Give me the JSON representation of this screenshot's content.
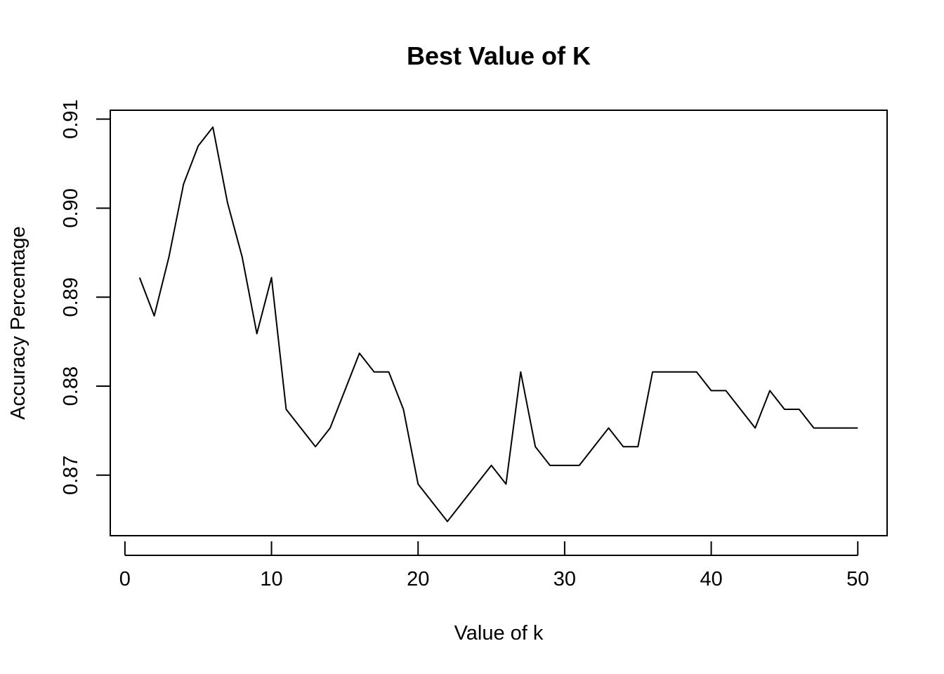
{
  "chart_data": {
    "type": "line",
    "title": "Best Value of K",
    "xlabel": "Value of k",
    "ylabel": "Accuracy Percentage",
    "xlim": [
      -1,
      52
    ],
    "ylim": [
      0.8632,
      0.911
    ],
    "xticks": [
      0,
      10,
      20,
      30,
      40,
      50
    ],
    "xtick_labels": [
      "0",
      "10",
      "20",
      "30",
      "40",
      "50"
    ],
    "yticks": [
      0.87,
      0.88,
      0.89,
      0.9,
      0.91
    ],
    "ytick_labels": [
      "0.87",
      "0.88",
      "0.89",
      "0.90",
      "0.91"
    ],
    "grid": false,
    "line_color": "#000000",
    "x": [
      1,
      2,
      3,
      4,
      5,
      6,
      7,
      8,
      9,
      10,
      11,
      12,
      13,
      14,
      15,
      16,
      17,
      18,
      19,
      20,
      21,
      22,
      23,
      24,
      25,
      26,
      27,
      28,
      29,
      30,
      31,
      32,
      33,
      34,
      35,
      36,
      37,
      38,
      39,
      40,
      41,
      42,
      43,
      44,
      45,
      46,
      47,
      48,
      49,
      50
    ],
    "y": [
      0.8922,
      0.8879,
      0.8945,
      0.9027,
      0.907,
      0.9091,
      0.9006,
      0.8945,
      0.8859,
      0.8922,
      0.8774,
      0.8753,
      0.8732,
      0.8753,
      0.8795,
      0.8837,
      0.8816,
      0.8816,
      0.8774,
      0.869,
      0.8669,
      0.8648,
      0.8669,
      0.869,
      0.8711,
      0.869,
      0.8816,
      0.8732,
      0.8711,
      0.8711,
      0.8711,
      0.8732,
      0.8753,
      0.8732,
      0.8732,
      0.8816,
      0.8816,
      0.8816,
      0.8816,
      0.8795,
      0.8795,
      0.8774,
      0.8753,
      0.8795,
      0.8774,
      0.8774,
      0.8753,
      0.8753,
      0.8753,
      0.8753
    ]
  }
}
